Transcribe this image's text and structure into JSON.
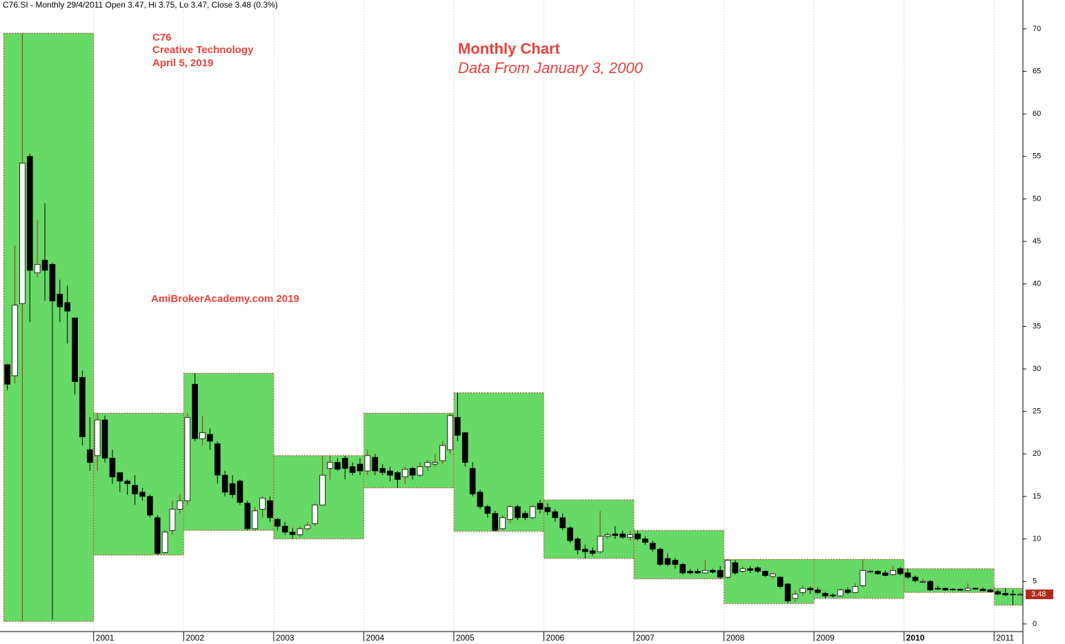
{
  "chart_data": {
    "type": "candlestick",
    "title": "C76.SI - Monthly 29/4/2011 Open 3.47, Hi 3.75, Lo 3.47, Close 3.48 (0.3%)",
    "annotations": [
      "C76",
      "Creative Technology",
      "April 5, 2019",
      "Monthly Chart",
      "Data From January 3, 2000",
      "AmiBrokerAcademy.com  2019"
    ],
    "open": [
      30.5,
      29.2,
      37.7,
      55,
      41.3,
      42.8,
      42.3,
      38.8,
      37.8,
      36,
      29,
      20.5,
      19.8,
      24,
      19.5,
      17.8,
      16.8,
      16.3,
      15.5,
      15,
      12.5,
      8.4,
      11,
      13.5,
      14.5,
      28.2,
      21.8,
      22.3,
      21.2,
      17.5,
      16.5,
      16.8,
      14.2,
      11.2,
      13.5,
      14.5,
      12.3,
      11.5,
      10.8,
      10.5,
      11.2,
      11.8,
      14,
      18.3,
      19,
      19.5,
      18.5,
      18.8,
      18,
      19.6,
      18.3,
      18,
      17.8,
      17.3,
      18.3,
      17.5,
      18.5,
      18.8,
      19.2,
      20.5,
      24.3,
      22.5,
      18.3,
      15.5,
      13.8,
      13,
      11.2,
      12.3,
      13.8,
      13,
      12.5,
      14.2,
      13.7,
      13.2,
      12.5,
      11.3,
      10,
      8.8,
      8.6,
      8.5,
      10.3,
      10.6,
      10.6,
      10.2,
      10.6,
      10,
      9.5,
      8.8,
      7.7,
      7.5,
      7,
      6.2,
      6.2,
      6,
      6.3,
      6.3,
      5.5,
      7.2,
      6.2,
      6.5,
      6.6,
      6.2,
      5.6,
      5.5,
      4.7,
      3,
      3.7,
      4.2,
      4,
      3.6,
      3.4,
      3.3,
      4,
      3.7,
      4.5,
      6.1,
      6.2,
      6,
      5.8,
      6.5,
      6,
      5.5,
      4.9,
      5,
      4.2,
      4.2,
      4.1,
      4.1,
      3.95,
      4.2,
      4.1,
      4,
      3.8,
      3.6,
      3.5,
      3.47
    ],
    "high": [
      30.6,
      44.5,
      69.5,
      55.3,
      47.5,
      49.5,
      42.5,
      40.5,
      39.8,
      36,
      29.8,
      24.3,
      24.8,
      24.5,
      20.5,
      17.8,
      17,
      17.5,
      16,
      15.2,
      12.8,
      11,
      14.5,
      15.3,
      24.8,
      29.5,
      24.5,
      23,
      21.5,
      18,
      17.5,
      17,
      14.5,
      13.8,
      15,
      15,
      12.5,
      12,
      11.3,
      11.5,
      12,
      14.2,
      19.8,
      19.8,
      19.5,
      19.8,
      19,
      19.5,
      20.5,
      20,
      18.8,
      18.5,
      18,
      18.5,
      18.5,
      19,
      19.3,
      20,
      21.5,
      24.8,
      27.2,
      22.5,
      19,
      15.8,
      14,
      13.3,
      12.8,
      14,
      14,
      13.3,
      14,
      14.6,
      14.2,
      13.5,
      13,
      11.5,
      10.2,
      9.3,
      9,
      13.3,
      10.8,
      11.5,
      11,
      11,
      11,
      10.3,
      9.8,
      9,
      8.3,
      7.8,
      7.2,
      6.5,
      6.5,
      7.5,
      6.5,
      6.8,
      7.6,
      7.5,
      6.8,
      6.8,
      6.8,
      6.3,
      6,
      5.6,
      4.8,
      3.9,
      4.5,
      4.4,
      4.3,
      3.8,
      3.6,
      4.1,
      4.3,
      4.8,
      7.6,
      6.4,
      6.3,
      6.3,
      6.8,
      6.7,
      6.5,
      5.7,
      5.3,
      5.2,
      4.5,
      4.3,
      4.2,
      4.2,
      4.8,
      4.3,
      4.3,
      4.2,
      4,
      4.2,
      4,
      3.75
    ],
    "low": [
      27.5,
      28.3,
      0.3,
      35.5,
      40.8,
      38,
      0.5,
      35.5,
      33,
      27,
      21,
      18,
      18,
      19,
      16.5,
      15.5,
      15.2,
      14,
      14.5,
      12.5,
      8.1,
      8.3,
      10.5,
      13,
      14,
      21.5,
      21,
      20.5,
      16.5,
      15,
      14.8,
      14,
      11,
      11,
      12.5,
      12,
      11,
      10.5,
      10,
      10.2,
      11,
      11.5,
      14,
      17,
      18,
      17,
      17.5,
      17.5,
      17.5,
      17.5,
      17.5,
      16.8,
      16,
      16.5,
      17,
      17.3,
      18,
      18.5,
      18.8,
      20,
      21.5,
      18.5,
      15,
      13.5,
      12.5,
      10.9,
      11,
      11.8,
      12.2,
      12.2,
      12.3,
      13,
      12.8,
      12,
      11,
      9.5,
      8.2,
      7.7,
      8,
      8.3,
      10,
      10,
      10,
      9.8,
      9.8,
      9.3,
      8.5,
      6.8,
      6.8,
      6.5,
      5.8,
      5.8,
      5.9,
      5.9,
      5.9,
      5.3,
      5.3,
      5.8,
      6,
      6,
      6,
      5.5,
      5.3,
      4.2,
      2.4,
      2.6,
      3.3,
      3.5,
      3.5,
      3,
      3.1,
      3.2,
      3.5,
      3.6,
      4.3,
      5.9,
      5.8,
      5.6,
      5.7,
      5.7,
      5.3,
      4.9,
      4.8,
      3.9,
      4,
      3.9,
      3.9,
      3.9,
      3.9,
      4,
      3.9,
      3.7,
      3.4,
      3.3,
      2.2,
      3.47
    ],
    "close": [
      28.2,
      37.5,
      54.2,
      41.6,
      42.3,
      41.6,
      38,
      37.3,
      36.8,
      28.5,
      22,
      19,
      24,
      19.5,
      17.3,
      16.8,
      16.5,
      15.3,
      15,
      12.8,
      8.3,
      10.8,
      13.5,
      14.5,
      24.3,
      21.8,
      22.5,
      21.5,
      17.5,
      15.5,
      15.2,
      14.3,
      11.2,
      13.3,
      14.8,
      12.5,
      11.5,
      10.8,
      10.5,
      11.2,
      11.6,
      14,
      17.5,
      19,
      18.2,
      18.3,
      17.8,
      18,
      19.8,
      18,
      17.8,
      17.5,
      17,
      18.2,
      17.5,
      18.5,
      19,
      19,
      21,
      24.5,
      22.2,
      19,
      15.3,
      13.8,
      13,
      11,
      12.5,
      13.8,
      12.5,
      12.5,
      13.8,
      13.5,
      13.2,
      12.5,
      11.3,
      9.8,
      8.7,
      8.5,
      8.3,
      10.3,
      10.5,
      10.4,
      10.2,
      10.5,
      10,
      9.6,
      8.8,
      7,
      7,
      7,
      6,
      6,
      6,
      6.3,
      6.1,
      5.5,
      7.5,
      6,
      6.5,
      6.3,
      6.2,
      5.7,
      5.9,
      4.4,
      2.7,
      3.5,
      4.2,
      4,
      3.7,
      3.3,
      3.3,
      4,
      3.7,
      4.4,
      6.3,
      6.2,
      5.9,
      5.7,
      6.3,
      5.9,
      5.5,
      5.1,
      5,
      4,
      4.1,
      4,
      4,
      3.95,
      4.2,
      4.1,
      3.9,
      3.8,
      3.5,
      3.4,
      3.45,
      3.48
    ],
    "yearly_ranges": [
      {
        "high": 69.5,
        "low": 0.3
      },
      {
        "high": 24.8,
        "low": 8.1
      },
      {
        "high": 29.5,
        "low": 11
      },
      {
        "high": 19.8,
        "low": 10
      },
      {
        "high": 24.8,
        "low": 16
      },
      {
        "high": 27.2,
        "low": 10.9
      },
      {
        "high": 14.6,
        "low": 7.7
      },
      {
        "high": 11,
        "low": 5.3
      },
      {
        "high": 7.6,
        "low": 2.4
      },
      {
        "high": 7.6,
        "low": 3
      },
      {
        "high": 6.5,
        "low": 3.7
      },
      {
        "high": 4.2,
        "low": 2.2
      }
    ],
    "xlim": [
      1999.96,
      2011.32
    ],
    "xticks": [
      2001,
      2002,
      2003,
      2004,
      2005,
      2006,
      2007,
      2008,
      2009,
      2010,
      2011
    ],
    "ylim": [
      -0.9,
      73.4
    ],
    "yticks": [
      0,
      5,
      10,
      15,
      20,
      25,
      30,
      35,
      40,
      45,
      50,
      55,
      60,
      65,
      70
    ],
    "grid": true,
    "up_color": "#ffffff",
    "down_color": "#000000",
    "range_color": "#66d966",
    "annotation_color": "#e8413c"
  }
}
